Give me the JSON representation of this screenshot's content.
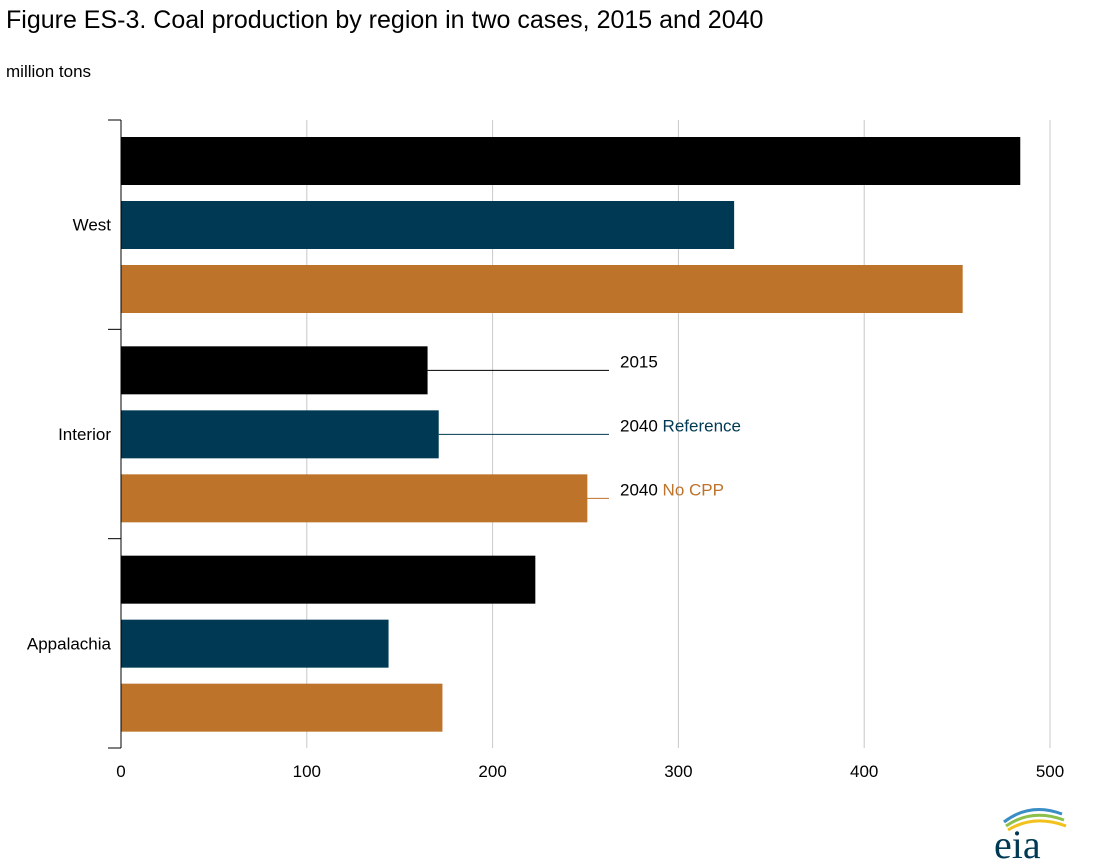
{
  "title": "Figure ES-3. Coal production by region in two cases, 2015 and 2040",
  "unit_label": "million tons",
  "logo_text": "eia",
  "colors": {
    "s2015": "#000000",
    "reference": "#003953",
    "nocpp": "#bd732a",
    "grid": "#c8c8c8",
    "axis": "#000000"
  },
  "chart_data": {
    "type": "bar",
    "orientation": "horizontal",
    "categories": [
      "West",
      "Interior",
      "Appalachia"
    ],
    "series": [
      {
        "name": "2015",
        "values": [
          484,
          165,
          223
        ]
      },
      {
        "name": "2040 Reference",
        "values": [
          330,
          171,
          144
        ]
      },
      {
        "name": "2040 No CPP",
        "values": [
          453,
          251,
          173
        ]
      }
    ],
    "xlim": [
      0,
      500
    ],
    "xticks": [
      0,
      100,
      200,
      300,
      400,
      500
    ],
    "grid": true,
    "legend": [
      {
        "prefix": "2040",
        "suffix": "",
        "text": "2015"
      },
      {
        "prefix": "2040",
        "suffix": "Reference"
      },
      {
        "prefix": "2040",
        "suffix": "No CPP"
      }
    ],
    "legend_placement": "inline, pointing to Interior bars"
  }
}
